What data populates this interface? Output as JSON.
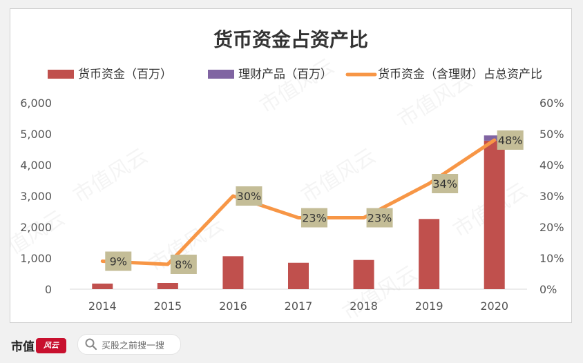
{
  "chart_data": {
    "type": "bar",
    "title": "货币资金占资产比",
    "categories": [
      "2014",
      "2015",
      "2016",
      "2017",
      "2018",
      "2019",
      "2020"
    ],
    "series": [
      {
        "name": "货币资金（百万）",
        "kind": "bar",
        "axis": "left",
        "color": "#c0504d",
        "values": [
          180,
          200,
          1060,
          850,
          940,
          2260,
          4780
        ]
      },
      {
        "name": "理财产品（百万）",
        "kind": "bar-stacked",
        "axis": "left",
        "color": "#8064a2",
        "values": [
          0,
          0,
          0,
          0,
          0,
          0,
          170
        ]
      },
      {
        "name": "货币资金（含理财）占总资产比",
        "kind": "line",
        "axis": "right",
        "color": "#f79646",
        "values": [
          9,
          8,
          30,
          23,
          23,
          34,
          48
        ],
        "labels": [
          "9%",
          "8%",
          "30%",
          "23%",
          "23%",
          "34%",
          "48%"
        ]
      }
    ],
    "y_left": {
      "min": 0,
      "max": 6000,
      "ticks": [
        0,
        1000,
        2000,
        3000,
        4000,
        5000,
        6000
      ],
      "tick_labels": [
        "0",
        "1,000",
        "2,000",
        "3,000",
        "4,000",
        "5,000",
        "6,000"
      ]
    },
    "y_right": {
      "min": 0,
      "max": 60,
      "ticks": [
        0,
        10,
        20,
        30,
        40,
        50,
        60
      ],
      "tick_labels": [
        "0%",
        "10%",
        "20%",
        "30%",
        "40%",
        "50%",
        "60%"
      ]
    },
    "grid": false,
    "legend": "top",
    "watermark": "市值风云"
  },
  "footer": {
    "brand": "市值",
    "brand_badge": "风云",
    "search_text": "买股之前搜一搜"
  }
}
